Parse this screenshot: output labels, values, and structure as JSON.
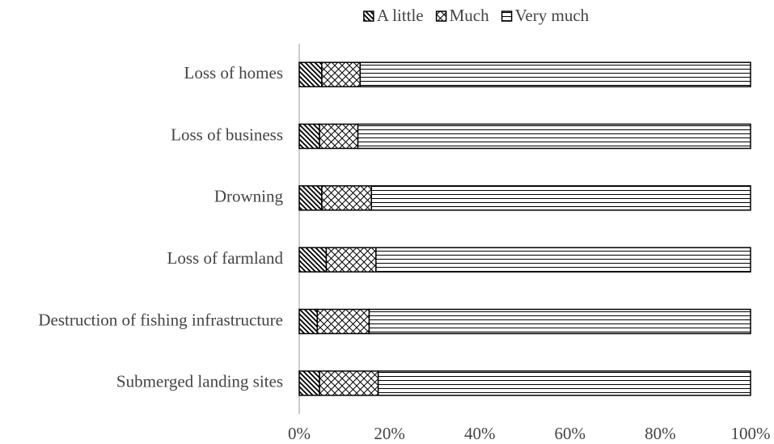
{
  "chart_data": {
    "type": "stacked-barh",
    "categories": [
      "Loss of homes",
      "Loss of business",
      "Drowning",
      "Loss of farmland",
      "Destruction of fishing infrastructure",
      "Submerged landing sites"
    ],
    "series": [
      {
        "name": "A little",
        "color": "#000000",
        "pattern": "diagonal",
        "values": [
          5,
          4.5,
          5,
          6,
          4,
          4.5
        ]
      },
      {
        "name": "Much",
        "color": "#000000",
        "pattern": "cross",
        "values": [
          8.5,
          8.5,
          11,
          11,
          11.5,
          13
        ]
      },
      {
        "name": "Very much",
        "color": "#000000",
        "pattern": "horizontal",
        "values": [
          86.5,
          87,
          84,
          83,
          84.5,
          82.5
        ]
      }
    ],
    "xlim": [
      0,
      100
    ],
    "xticks": [
      {
        "value": 0,
        "label": "0%"
      },
      {
        "value": 20,
        "label": "20%"
      },
      {
        "value": 40,
        "label": "40%"
      },
      {
        "value": 60,
        "label": "60%"
      },
      {
        "value": 80,
        "label": "80%"
      },
      {
        "value": 100,
        "label": "100%"
      }
    ],
    "legend": "top"
  }
}
